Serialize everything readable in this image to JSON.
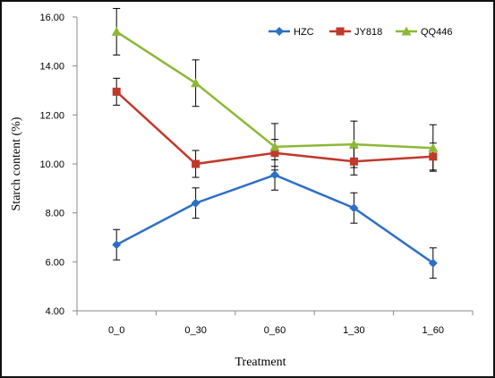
{
  "chart_data": {
    "type": "line",
    "title": "",
    "xlabel": "Treatment",
    "ylabel": "Starch content (%)",
    "categories": [
      "0_0",
      "0_30",
      "0_60",
      "1_30",
      "1_60"
    ],
    "ylim": [
      4,
      16
    ],
    "yticks": [
      "4.00",
      "6.00",
      "8.00",
      "10.00",
      "12.00",
      "14.00",
      "16.00"
    ],
    "legend_position": "top-right",
    "grid": false,
    "series": [
      {
        "name": "HZC",
        "color": "#2e6fc4",
        "marker": "diamond",
        "values": [
          6.7,
          8.4,
          9.55,
          8.2,
          5.95
        ],
        "errors": [
          0.62,
          0.62,
          0.62,
          0.62,
          0.62
        ]
      },
      {
        "name": "JY818",
        "color": "#c0392b",
        "marker": "square",
        "values": [
          12.95,
          10.0,
          10.45,
          10.1,
          10.3
        ],
        "errors": [
          0.55,
          0.55,
          0.55,
          0.55,
          0.55
        ]
      },
      {
        "name": "QQ446",
        "color": "#8db836",
        "marker": "triangle",
        "values": [
          15.4,
          13.3,
          10.7,
          10.8,
          10.65
        ],
        "errors": [
          0.95,
          0.95,
          0.95,
          0.95,
          0.95
        ]
      }
    ]
  }
}
